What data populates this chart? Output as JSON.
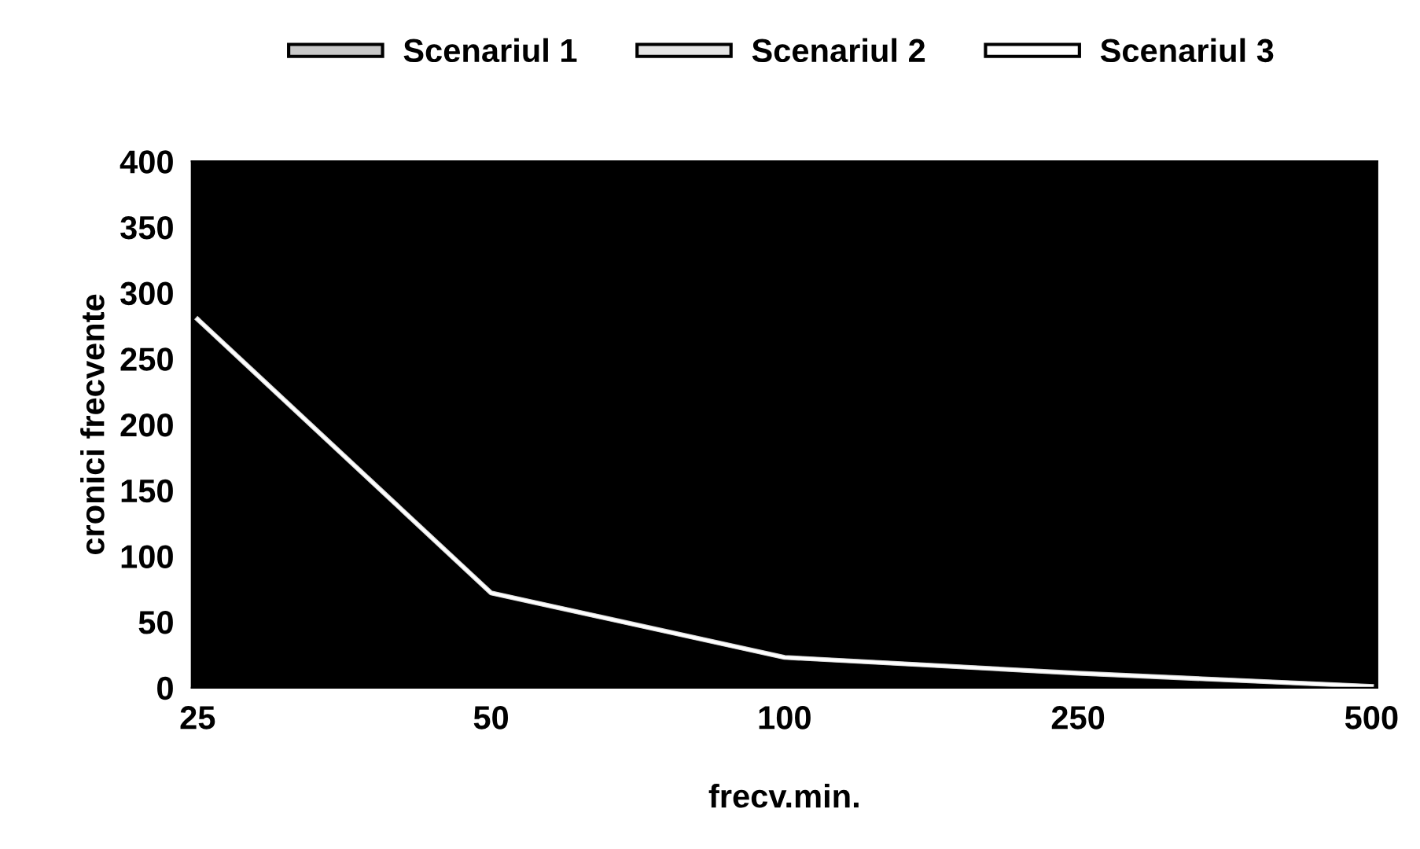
{
  "chart_data": {
    "type": "line",
    "xlabel": "frecv.min.",
    "ylabel": "cronici frecvente",
    "categories": [
      "25",
      "50",
      "100",
      "250",
      "500"
    ],
    "series": [
      {
        "name": "Scenariul 1",
        "color": "#c8c8c8",
        "values": [
          280,
          72,
          23,
          11,
          1
        ]
      },
      {
        "name": "Scenariul 2",
        "color": "#e6e6e6",
        "values": [
          280,
          72,
          23,
          11,
          1
        ]
      },
      {
        "name": "Scenariul 3",
        "color": "#ffffff",
        "values": [
          280,
          72,
          23,
          11,
          1
        ]
      }
    ],
    "ylim": [
      0,
      400
    ],
    "yticks": [
      0,
      50,
      100,
      150,
      200,
      250,
      300,
      350,
      400
    ],
    "grid": false,
    "legend": "top",
    "marker": "none",
    "line_style": "solid"
  }
}
